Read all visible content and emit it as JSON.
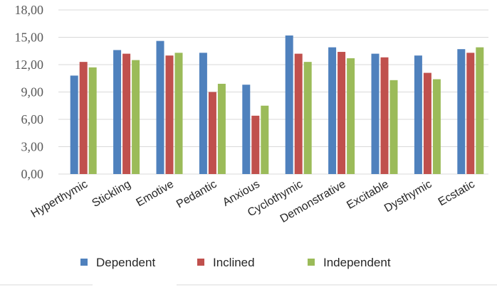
{
  "chart_data": {
    "type": "bar",
    "categories": [
      "Hyperthymic",
      "Stickling",
      "Emotive",
      "Pedantic",
      "Anxious",
      "Cyclothymic",
      "Demonstrative",
      "Excitable",
      "Dysthymic",
      "Ecstatic"
    ],
    "series": [
      {
        "name": "Dependent",
        "color": "#4f81bd",
        "values": [
          10.8,
          13.6,
          14.6,
          13.3,
          9.8,
          15.2,
          13.9,
          13.2,
          13.0,
          13.7
        ]
      },
      {
        "name": "Inclined",
        "color": "#c0504d",
        "values": [
          12.3,
          13.2,
          13.0,
          9.0,
          6.4,
          13.2,
          13.4,
          12.8,
          11.1,
          13.3
        ]
      },
      {
        "name": "Independent",
        "color": "#9bbb59",
        "values": [
          11.7,
          12.5,
          13.3,
          9.9,
          7.5,
          12.3,
          12.7,
          10.3,
          10.4,
          13.9
        ]
      }
    ],
    "yticks": [
      "0,00",
      "3,00",
      "6,00",
      "9,00",
      "12,00",
      "15,00",
      "18,00"
    ],
    "ylim": [
      0,
      18
    ],
    "grid": true,
    "legend_position": "bottom"
  }
}
